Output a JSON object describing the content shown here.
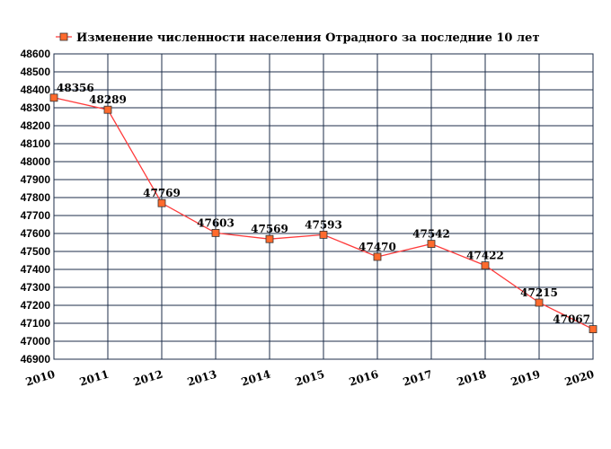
{
  "chart_data": {
    "type": "line",
    "title": "Изменение численности населения Отрадного за последние 10 лет",
    "xlabel": "",
    "ylabel": "",
    "x": [
      "2010",
      "2011",
      "2012",
      "2013",
      "2014",
      "2015",
      "2016",
      "2017",
      "2018",
      "2019",
      "2020"
    ],
    "series": [
      {
        "name": "Изменение численности населения Отрадного за последние 10 лет",
        "values": [
          48356,
          48289,
          47769,
          47603,
          47569,
          47593,
          47470,
          47542,
          47422,
          47215,
          47067
        ],
        "line_color": "#ff3b3b",
        "marker_color": "#ff6a2c",
        "marker_edge_color": "#333333",
        "marker": "square"
      }
    ],
    "ylim": [
      46900,
      48600
    ],
    "ytick_step": 100,
    "grid": true,
    "grid_color": "#1c2e4a",
    "legend_position": "top-left"
  }
}
